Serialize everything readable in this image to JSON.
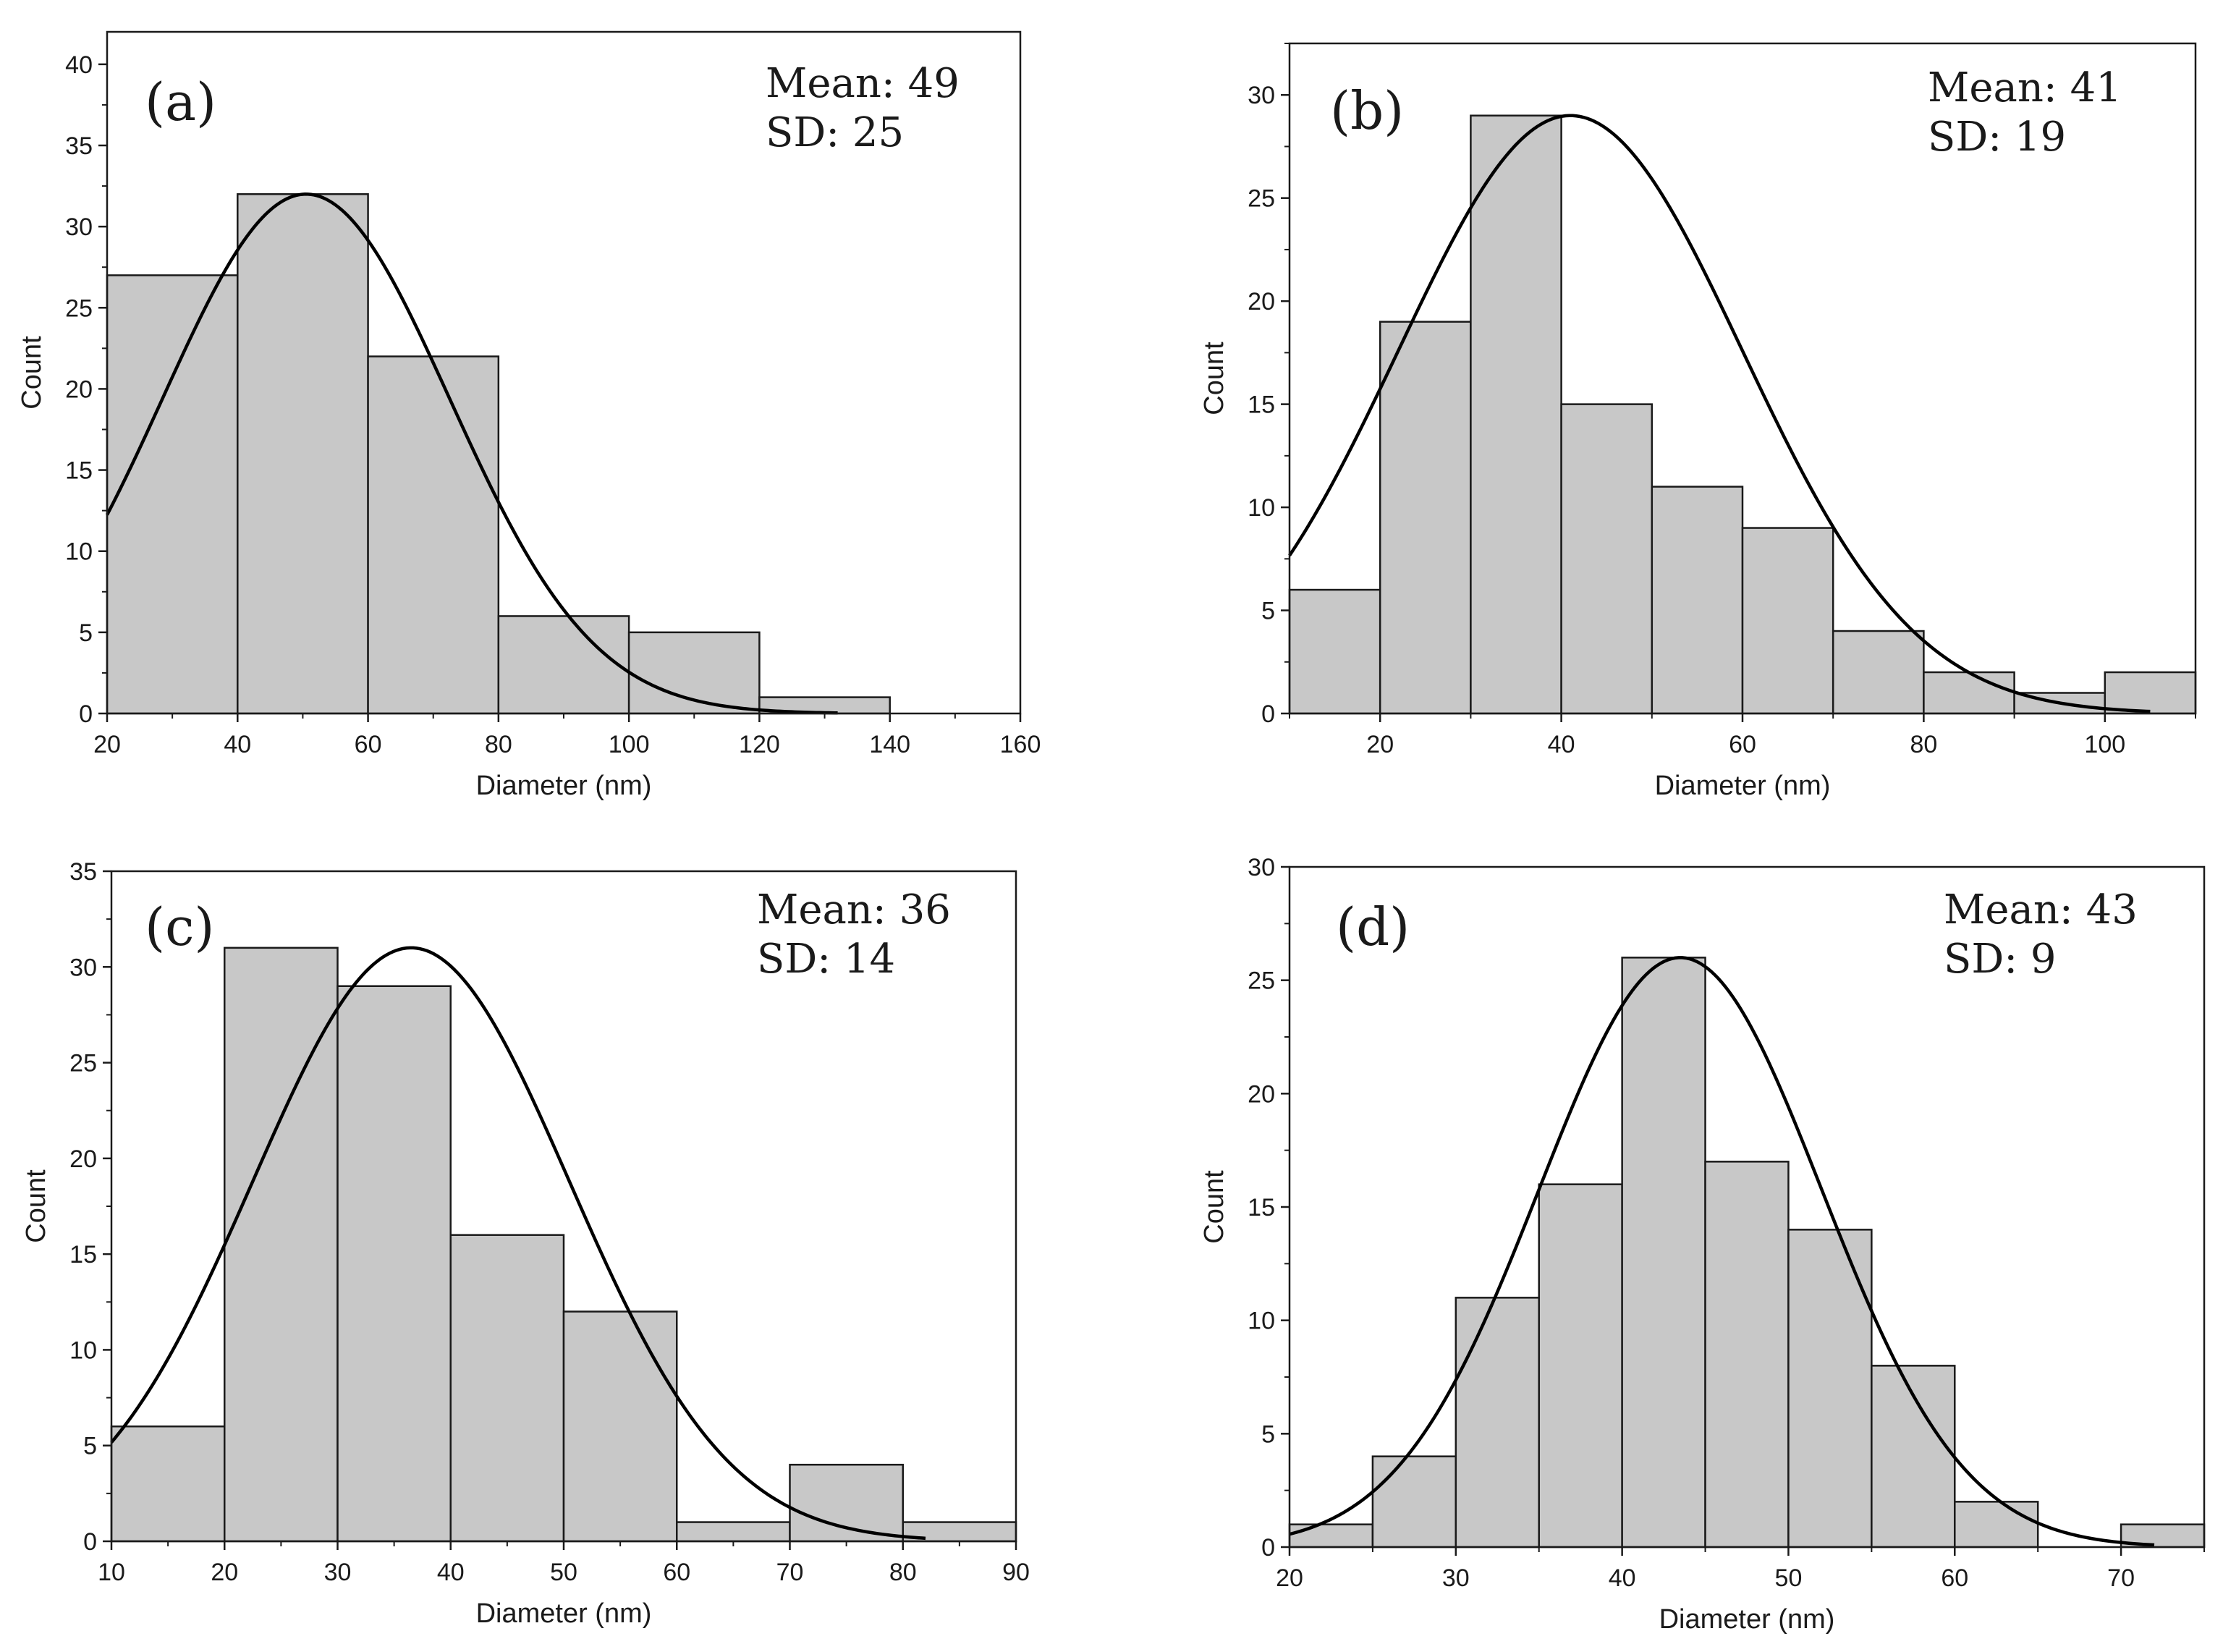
{
  "figure": {
    "colors": {
      "bar_fill": "#c8c8c8",
      "bar_stroke": "#1a1a1a",
      "curve": "#000000",
      "axis": "#1a1a1a",
      "background": "#ffffff"
    }
  },
  "chart_data": [
    {
      "panel": "(a)",
      "type": "bar",
      "title": "",
      "xlabel": "Diameter (nm)",
      "ylabel": "Count",
      "xlim": [
        20,
        160
      ],
      "ylim": [
        0,
        42
      ],
      "xticks": [
        20,
        40,
        60,
        80,
        100,
        120,
        140,
        160
      ],
      "yticks": [
        0,
        5,
        10,
        15,
        20,
        25,
        30,
        35,
        40
      ],
      "bin_edges": [
        20,
        40,
        60,
        80,
        100,
        120,
        140
      ],
      "values": [
        27,
        32,
        22,
        6,
        5,
        1
      ],
      "fit": {
        "type": "gaussian",
        "peak_x": 50.5,
        "amplitude": 32,
        "sigma": 22,
        "x_range": [
          20,
          132
        ]
      },
      "stats": {
        "mean_label": "Mean: 49",
        "sd_label": "SD: 25"
      },
      "legend_position": "top-right"
    },
    {
      "panel": "(b)",
      "type": "bar",
      "title": "",
      "xlabel": "Diameter (nm)",
      "ylabel": "Count",
      "xlim": [
        10,
        110
      ],
      "ylim": [
        0,
        32.5
      ],
      "xticks": [
        20,
        40,
        60,
        80,
        100
      ],
      "yticks": [
        0,
        5,
        10,
        15,
        20,
        25,
        30
      ],
      "bin_edges": [
        10,
        20,
        30,
        40,
        50,
        60,
        70,
        80,
        90,
        100,
        110
      ],
      "values": [
        6,
        19,
        29,
        15,
        11,
        9,
        4,
        2,
        1,
        2
      ],
      "fit": {
        "type": "gaussian",
        "peak_x": 41,
        "amplitude": 29,
        "sigma": 19,
        "x_range": [
          10,
          105
        ]
      },
      "stats": {
        "mean_label": "Mean: 41",
        "sd_label": "SD: 19"
      },
      "legend_position": "top-right"
    },
    {
      "panel": "(c)",
      "type": "bar",
      "title": "",
      "xlabel": "Diameter (nm)",
      "ylabel": "Count",
      "xlim": [
        10,
        90
      ],
      "ylim": [
        0,
        35
      ],
      "xticks": [
        10,
        20,
        30,
        40,
        50,
        60,
        70,
        80,
        90
      ],
      "yticks": [
        0,
        5,
        10,
        15,
        20,
        25,
        30,
        35
      ],
      "bin_edges": [
        10,
        20,
        30,
        40,
        50,
        60,
        70,
        80,
        90
      ],
      "values": [
        6,
        31,
        29,
        16,
        12,
        1,
        4,
        1
      ],
      "fit": {
        "type": "gaussian",
        "peak_x": 36.5,
        "amplitude": 31,
        "sigma": 14,
        "x_range": [
          10,
          82
        ]
      },
      "stats": {
        "mean_label": "Mean: 36",
        "sd_label": "SD: 14"
      },
      "legend_position": "top-right"
    },
    {
      "panel": "(d)",
      "type": "bar",
      "title": "",
      "xlabel": "Diameter (nm)",
      "ylabel": "Count",
      "xlim": [
        20,
        75
      ],
      "ylim": [
        0,
        30
      ],
      "xticks": [
        20,
        30,
        40,
        50,
        60,
        70
      ],
      "yticks": [
        0,
        5,
        10,
        15,
        20,
        25,
        30
      ],
      "bin_edges": [
        20,
        25,
        30,
        35,
        40,
        45,
        50,
        55,
        60,
        65,
        70,
        75
      ],
      "values": [
        1,
        4,
        11,
        16,
        26,
        17,
        14,
        8,
        2,
        0,
        1
      ],
      "fit": {
        "type": "gaussian",
        "peak_x": 43.5,
        "amplitude": 26,
        "sigma": 8.5,
        "x_range": [
          20,
          72
        ]
      },
      "stats": {
        "mean_label": "Mean: 43",
        "sd_label": "SD: 9"
      },
      "legend_position": "top-right"
    }
  ]
}
